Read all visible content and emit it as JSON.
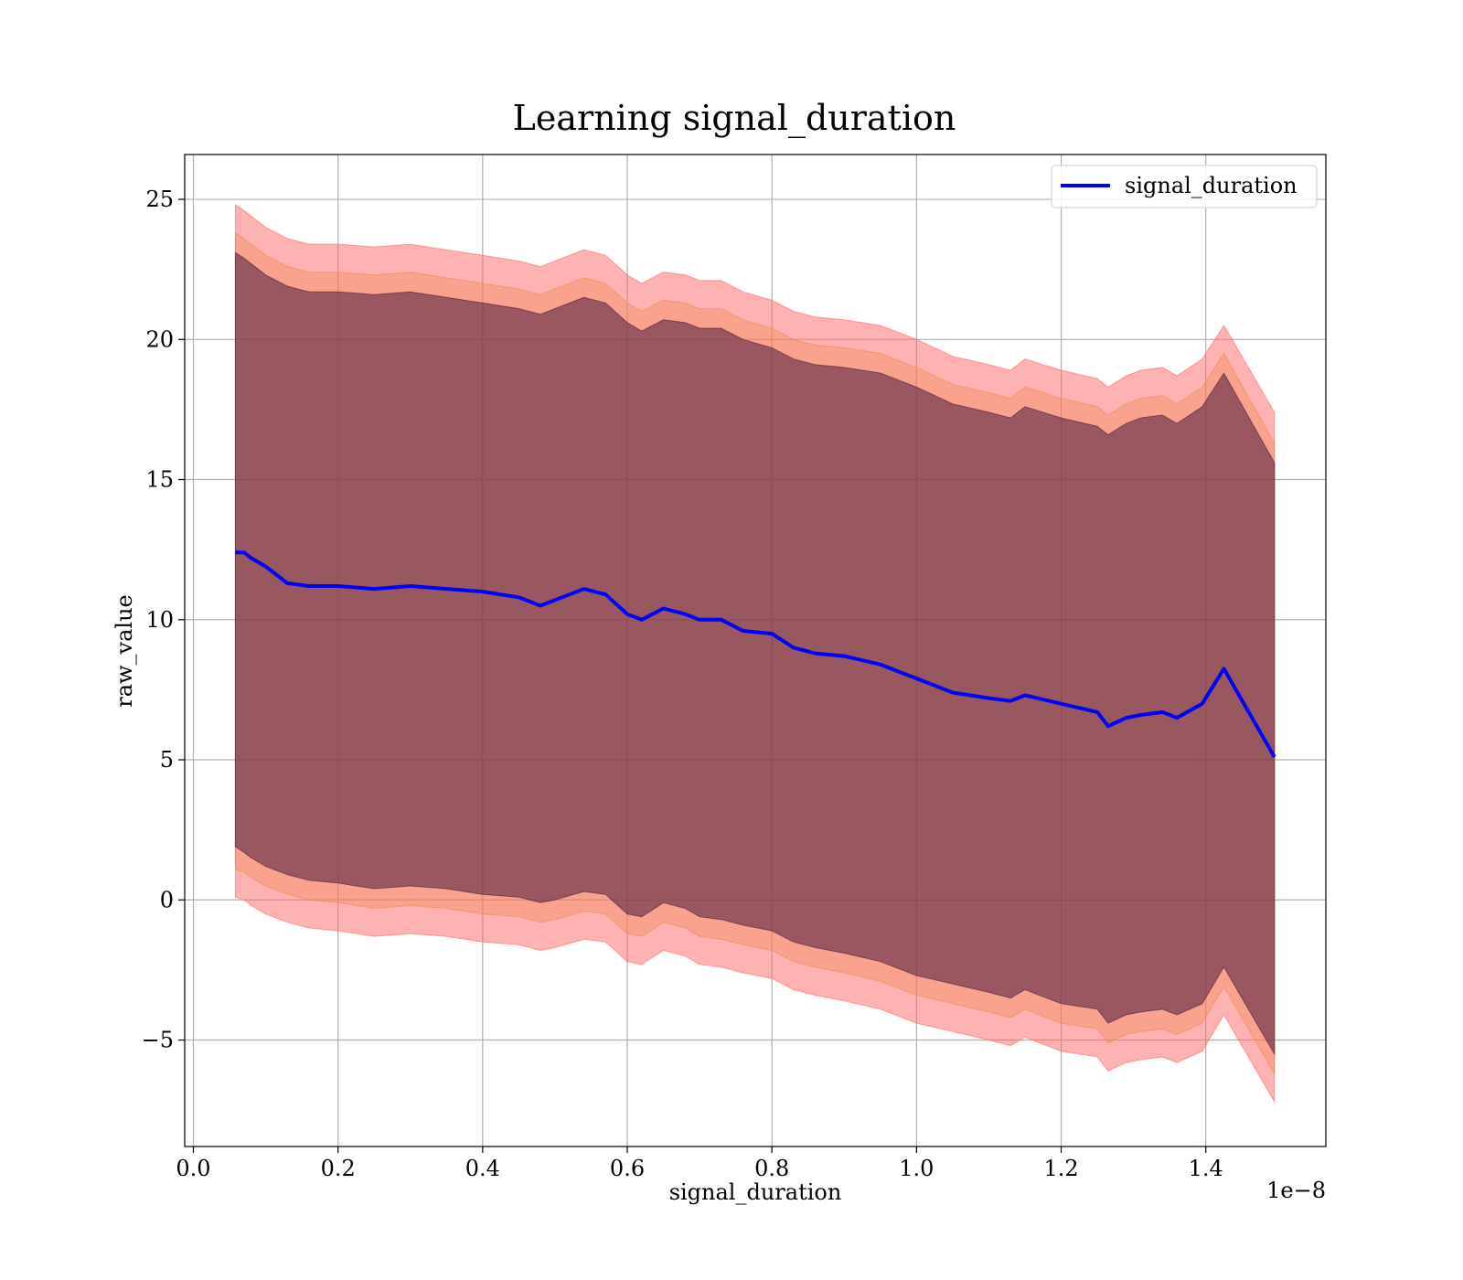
{
  "chart_data": {
    "type": "line",
    "title": "Learning signal_duration",
    "xlabel": "signal_duration",
    "ylabel": "raw_value",
    "x_offset_label": "1e−8",
    "xlim": [
      -0.012,
      1.566
    ],
    "ylim": [
      -8.8,
      26.6
    ],
    "x_ticks": [
      0.0,
      0.2,
      0.4,
      0.6,
      0.8,
      1.0,
      1.2,
      1.4
    ],
    "x_tick_labels": [
      "0.0",
      "0.2",
      "0.4",
      "0.6",
      "0.8",
      "1.0",
      "1.2",
      "1.4"
    ],
    "y_ticks": [
      -5,
      0,
      5,
      10,
      15,
      20,
      25
    ],
    "y_tick_labels": [
      "−5",
      "0",
      "5",
      "10",
      "15",
      "20",
      "25"
    ],
    "grid": true,
    "legend_position": "top-right",
    "series": [
      {
        "name": "signal_duration",
        "color": "#0000ff",
        "x": [
          0.058,
          0.07,
          0.08,
          0.1,
          0.13,
          0.16,
          0.2,
          0.25,
          0.3,
          0.35,
          0.4,
          0.45,
          0.48,
          0.5,
          0.54,
          0.57,
          0.6,
          0.62,
          0.65,
          0.68,
          0.7,
          0.73,
          0.76,
          0.8,
          0.83,
          0.86,
          0.9,
          0.95,
          1.0,
          1.05,
          1.1,
          1.13,
          1.15,
          1.2,
          1.25,
          1.265,
          1.29,
          1.31,
          1.34,
          1.36,
          1.395,
          1.425,
          1.495
        ],
        "values": [
          12.4,
          12.4,
          12.2,
          11.9,
          11.3,
          11.2,
          11.2,
          11.1,
          11.2,
          11.1,
          11.0,
          10.8,
          10.5,
          10.7,
          11.1,
          10.9,
          10.2,
          10.0,
          10.4,
          10.2,
          10.0,
          10.0,
          9.6,
          9.5,
          9.0,
          8.8,
          8.7,
          8.4,
          7.9,
          7.4,
          7.2,
          7.1,
          7.3,
          7.0,
          6.7,
          6.2,
          6.5,
          6.6,
          6.7,
          6.5,
          7.0,
          8.25,
          5.1
        ]
      }
    ],
    "bands": [
      {
        "color": "#ff6666",
        "opacity": 0.5,
        "upper": [
          24.8,
          24.6,
          24.4,
          24.0,
          23.6,
          23.4,
          23.4,
          23.3,
          23.4,
          23.2,
          23.0,
          22.8,
          22.6,
          22.8,
          23.2,
          23.0,
          22.3,
          22.0,
          22.4,
          22.3,
          22.1,
          22.1,
          21.7,
          21.4,
          21.0,
          20.8,
          20.7,
          20.5,
          20.0,
          19.4,
          19.1,
          18.9,
          19.3,
          18.9,
          18.6,
          18.3,
          18.7,
          18.9,
          19.0,
          18.7,
          19.3,
          20.5,
          17.4
        ],
        "lower": [
          0.1,
          0.0,
          -0.2,
          -0.5,
          -0.8,
          -1.0,
          -1.1,
          -1.3,
          -1.2,
          -1.3,
          -1.5,
          -1.6,
          -1.8,
          -1.7,
          -1.4,
          -1.5,
          -2.2,
          -2.3,
          -1.8,
          -2.0,
          -2.3,
          -2.4,
          -2.6,
          -2.8,
          -3.2,
          -3.4,
          -3.6,
          -3.9,
          -4.4,
          -4.7,
          -5.0,
          -5.2,
          -4.9,
          -5.4,
          -5.6,
          -6.1,
          -5.8,
          -5.7,
          -5.6,
          -5.8,
          -5.4,
          -4.1,
          -7.2
        ]
      },
      {
        "color": "#ee8844",
        "opacity": 0.35,
        "upper": [
          23.8,
          23.6,
          23.4,
          23.0,
          22.6,
          22.4,
          22.4,
          22.3,
          22.4,
          22.2,
          22.0,
          21.8,
          21.6,
          21.8,
          22.2,
          22.0,
          21.3,
          21.0,
          21.4,
          21.3,
          21.1,
          21.1,
          20.7,
          20.4,
          20.0,
          19.8,
          19.7,
          19.5,
          19.0,
          18.4,
          18.1,
          17.9,
          18.3,
          17.9,
          17.6,
          17.3,
          17.7,
          17.9,
          18.0,
          17.7,
          18.3,
          19.5,
          16.3
        ],
        "lower": [
          1.1,
          1.0,
          0.8,
          0.5,
          0.2,
          0.0,
          -0.1,
          -0.3,
          -0.2,
          -0.3,
          -0.5,
          -0.6,
          -0.8,
          -0.7,
          -0.4,
          -0.5,
          -1.2,
          -1.3,
          -0.8,
          -1.0,
          -1.3,
          -1.4,
          -1.6,
          -1.8,
          -2.2,
          -2.4,
          -2.6,
          -2.9,
          -3.4,
          -3.7,
          -4.0,
          -4.2,
          -3.9,
          -4.4,
          -4.6,
          -5.1,
          -4.8,
          -4.7,
          -4.6,
          -4.8,
          -4.4,
          -3.1,
          -6.2
        ]
      },
      {
        "color": "#4b1a3c",
        "opacity": 0.55,
        "upper": [
          23.1,
          22.9,
          22.7,
          22.3,
          21.9,
          21.7,
          21.7,
          21.6,
          21.7,
          21.5,
          21.3,
          21.1,
          20.9,
          21.1,
          21.5,
          21.3,
          20.6,
          20.3,
          20.7,
          20.6,
          20.4,
          20.4,
          20.0,
          19.7,
          19.3,
          19.1,
          19.0,
          18.8,
          18.3,
          17.7,
          17.4,
          17.2,
          17.6,
          17.2,
          16.9,
          16.6,
          17.0,
          17.2,
          17.3,
          17.0,
          17.6,
          18.8,
          15.6
        ],
        "lower": [
          1.9,
          1.7,
          1.5,
          1.2,
          0.9,
          0.7,
          0.6,
          0.4,
          0.5,
          0.4,
          0.2,
          0.1,
          -0.1,
          0.0,
          0.3,
          0.2,
          -0.5,
          -0.6,
          -0.1,
          -0.3,
          -0.6,
          -0.7,
          -0.9,
          -1.1,
          -1.5,
          -1.7,
          -1.9,
          -2.2,
          -2.7,
          -3.0,
          -3.3,
          -3.5,
          -3.2,
          -3.7,
          -3.9,
          -4.4,
          -4.1,
          -4.0,
          -3.9,
          -4.1,
          -3.7,
          -2.4,
          -5.5
        ]
      }
    ]
  }
}
